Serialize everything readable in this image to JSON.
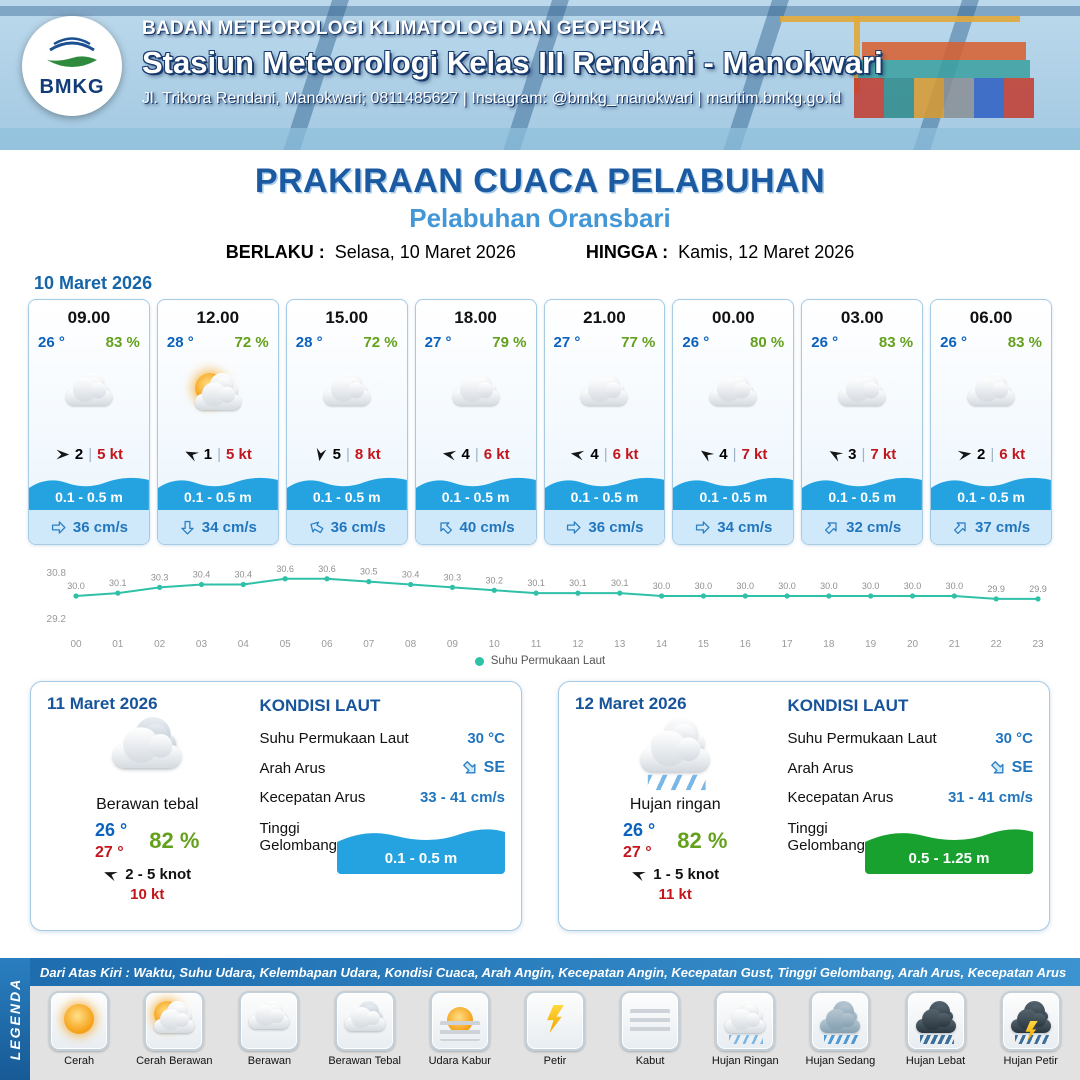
{
  "header": {
    "logo_text": "BMKG",
    "agency": "BADAN METEOROLOGI KLIMATOLOGI DAN GEOFISIKA",
    "station": "Stasiun Meteorologi Kelas III Rendani - Manokwari",
    "address": "Jl. Trikora Rendani, Manokwari; 0811485627 | Instagram: @bmkg_manokwari | maritim.bmkg.go.id"
  },
  "title": {
    "main": "PRAKIRAAN CUACA PELABUHAN",
    "subtitle": "Pelabuhan Oransbari",
    "valid_from_label": "BERLAKU :",
    "valid_from": "Selasa, 10 Maret 2026",
    "valid_to_label": "HINGGA :",
    "valid_to": "Kamis, 12 Maret 2026"
  },
  "forecast": {
    "date": "10 Maret 2026",
    "cards": [
      {
        "time": "09.00",
        "temp": "26 °",
        "humidity": "83 %",
        "icon": "berawan",
        "wind_dir_deg": 0,
        "wind_force": "2",
        "wind_speed": "5 kt",
        "wave": "0.1 - 0.5 m",
        "current_dir_deg": 0,
        "current": "36 cm/s"
      },
      {
        "time": "12.00",
        "temp": "28 °",
        "humidity": "72 %",
        "icon": "cerah-berawan",
        "wind_dir_deg": 205,
        "wind_force": "1",
        "wind_speed": "5 kt",
        "wave": "0.1 - 0.5 m",
        "current_dir_deg": 90,
        "current": "34 cm/s"
      },
      {
        "time": "15.00",
        "temp": "28 °",
        "humidity": "72 %",
        "icon": "berawan",
        "wind_dir_deg": 100,
        "wind_force": "5",
        "wind_speed": "8 kt",
        "wave": "0.1 - 0.5 m",
        "current_dir_deg": 210,
        "current": "36 cm/s"
      },
      {
        "time": "18.00",
        "temp": "27 °",
        "humidity": "79 %",
        "icon": "berawan",
        "wind_dir_deg": 190,
        "wind_force": "4",
        "wind_speed": "6 kt",
        "wave": "0.1 - 0.5 m",
        "current_dir_deg": 225,
        "current": "40 cm/s"
      },
      {
        "time": "21.00",
        "temp": "27 °",
        "humidity": "77 %",
        "icon": "berawan",
        "wind_dir_deg": 190,
        "wind_force": "4",
        "wind_speed": "6 kt",
        "wave": "0.1 - 0.5 m",
        "current_dir_deg": 0,
        "current": "36 cm/s"
      },
      {
        "time": "00.00",
        "temp": "26 °",
        "humidity": "80 %",
        "icon": "berawan",
        "wind_dir_deg": 215,
        "wind_force": "4",
        "wind_speed": "7 kt",
        "wave": "0.1 - 0.5 m",
        "current_dir_deg": 0,
        "current": "34 cm/s"
      },
      {
        "time": "03.00",
        "temp": "26 °",
        "humidity": "83 %",
        "icon": "berawan",
        "wind_dir_deg": 210,
        "wind_force": "3",
        "wind_speed": "7 kt",
        "wave": "0.1 - 0.5 m",
        "current_dir_deg": 315,
        "current": "32 cm/s"
      },
      {
        "time": "06.00",
        "temp": "26 °",
        "humidity": "83 %",
        "icon": "berawan",
        "wind_dir_deg": 350,
        "wind_force": "2",
        "wind_speed": "6 kt",
        "wave": "0.1 - 0.5 m",
        "current_dir_deg": 315,
        "current": "37 cm/s"
      }
    ]
  },
  "chart_data": {
    "type": "line",
    "title": "",
    "xlabel": "",
    "ylabel": "",
    "ylim": [
      29.2,
      30.8
    ],
    "line_color": "#2fc0a8",
    "grid": false,
    "legend_position": "bottom",
    "x_labels": [
      "00",
      "01",
      "02",
      "03",
      "04",
      "05",
      "06",
      "07",
      "08",
      "09",
      "10",
      "11",
      "12",
      "13",
      "14",
      "15",
      "16",
      "17",
      "18",
      "19",
      "20",
      "21",
      "22",
      "23"
    ],
    "series": [
      {
        "name": "Suhu Permukaan Laut",
        "values": [
          30.0,
          30.1,
          30.3,
          30.4,
          30.4,
          30.6,
          30.6,
          30.5,
          30.4,
          30.3,
          30.2,
          30.1,
          30.1,
          30.1,
          30.0,
          30.0,
          30.0,
          30.0,
          30.0,
          30.0,
          30.0,
          30.0,
          29.9,
          29.9
        ]
      }
    ]
  },
  "days": [
    {
      "date": "11 Maret 2026",
      "icon": "berawan-tebal",
      "condition": "Berawan tebal",
      "temp": "26 °",
      "temp2": "27 °",
      "humidity": "82 %",
      "wind": "2  - 5 knot",
      "gust": "10 kt",
      "sea": {
        "title": "KONDISI LAUT",
        "sst_label": "Suhu Permukaan Laut",
        "sst": "30 °C",
        "current_dir_label": "Arah Arus",
        "current_dir": "SE",
        "current_speed_label": "Kecepatan Arus",
        "current_speed": "33  - 41 cm/s",
        "wave_label": "Tinggi Gelombang",
        "wave": "0.1 - 0.5 m",
        "wave_color": "#25a3e0"
      }
    },
    {
      "date": "12 Maret 2026",
      "icon": "hujan-ringan",
      "condition": "Hujan ringan",
      "temp": "26 °",
      "temp2": "27 °",
      "humidity": "82 %",
      "wind": "1  - 5 knot",
      "gust": "11 kt",
      "sea": {
        "title": "KONDISI LAUT",
        "sst_label": "Suhu Permukaan Laut",
        "sst": "30 °C",
        "current_dir_label": "Arah Arus",
        "current_dir": "SE",
        "current_speed_label": "Kecepatan Arus",
        "current_speed": "31  - 41 cm/s",
        "wave_label": "Tinggi Gelombang",
        "wave": "0.5 - 1.25 m",
        "wave_color": "#18a12e"
      }
    }
  ],
  "legend": {
    "vertical_label": "LEGENDA",
    "header": "Dari Atas Kiri : Waktu, Suhu Udara, Kelembapan Udara, Kondisi Cuaca, Arah Angin, Kecepatan Angin, Kecepatan Gust, Tinggi Gelombang, Arah Arus, Kecepatan Arus",
    "items": [
      {
        "label": "Cerah",
        "icon": "cerah"
      },
      {
        "label": "Cerah Berawan",
        "icon": "cerah-berawan"
      },
      {
        "label": "Berawan",
        "icon": "berawan"
      },
      {
        "label": "Berawan Tebal",
        "icon": "berawan-tebal"
      },
      {
        "label": "Udara Kabur",
        "icon": "udara-kabur"
      },
      {
        "label": "Petir",
        "icon": "petir"
      },
      {
        "label": "Kabut",
        "icon": "kabut"
      },
      {
        "label": "Hujan Ringan",
        "icon": "hujan-ringan"
      },
      {
        "label": "Hujan Sedang",
        "icon": "hujan-sedang"
      },
      {
        "label": "Hujan Lebat",
        "icon": "hujan-lebat"
      },
      {
        "label": "Hujan Petir",
        "icon": "hujan-petir"
      }
    ]
  },
  "colors": {
    "accent_dark_blue": "#1b5aa0",
    "accent_light_blue": "#4397d6",
    "temp_blue": "#0a62bd",
    "humidity_green": "#63a11c",
    "speed_red": "#c3161c",
    "wave_blue": "#25a3e0",
    "wave_green": "#18a12e",
    "sst_line_teal": "#2fc0a8"
  }
}
